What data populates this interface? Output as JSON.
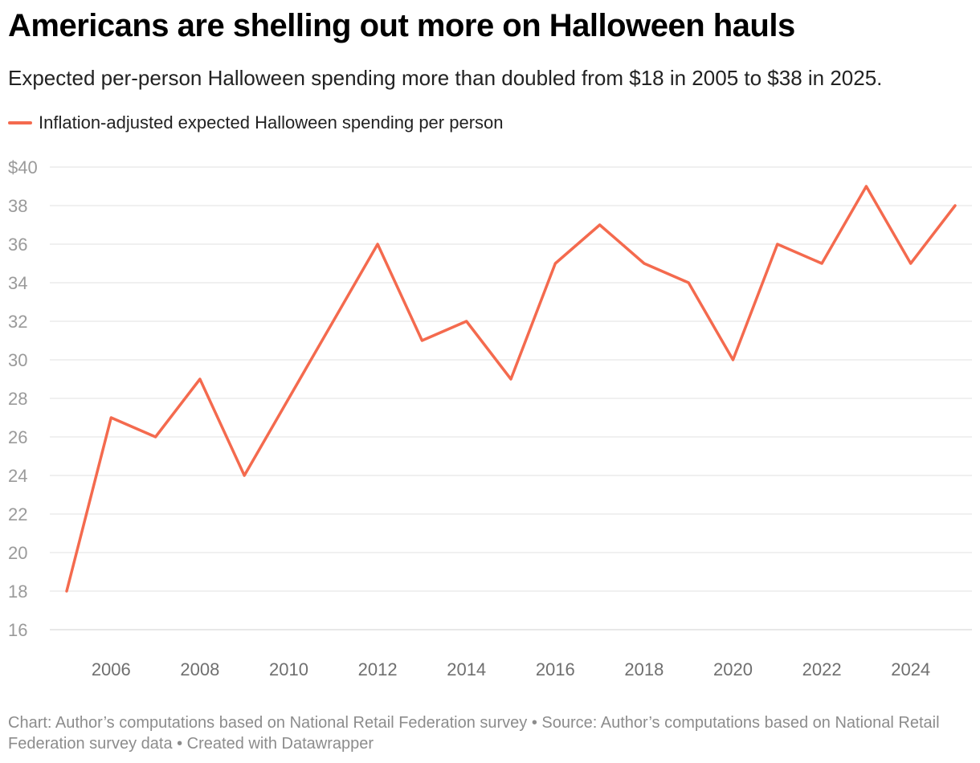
{
  "header": {
    "title": "Americans are shelling out more on Halloween hauls",
    "subtitle": "Expected per-person Halloween spending more than doubled from $18 in 2005 to $38 in 2025."
  },
  "legend": {
    "label": "Inflation-adjusted expected Halloween spending per person",
    "color": "#f46a4e"
  },
  "chart_data": {
    "type": "line",
    "title": "Americans are shelling out more on Halloween hauls",
    "xlabel": "",
    "ylabel": "",
    "x": [
      2005,
      2006,
      2007,
      2008,
      2009,
      2010,
      2011,
      2012,
      2013,
      2014,
      2015,
      2016,
      2017,
      2018,
      2019,
      2020,
      2021,
      2022,
      2023,
      2024,
      2025
    ],
    "series": [
      {
        "name": "Inflation-adjusted expected Halloween spending per person",
        "color": "#f46a4e",
        "values": [
          18,
          27,
          26,
          29,
          24,
          28,
          32,
          36,
          31,
          32,
          29,
          35,
          37,
          35,
          34,
          30,
          36,
          35,
          39,
          35,
          38
        ]
      }
    ],
    "ylim": [
      16,
      40
    ],
    "xlim": [
      2005,
      2025
    ],
    "yticks": [
      16,
      18,
      20,
      22,
      24,
      26,
      28,
      30,
      32,
      34,
      36,
      38,
      40
    ],
    "ytick_labels": [
      "16",
      "18",
      "20",
      "22",
      "24",
      "26",
      "28",
      "30",
      "32",
      "34",
      "36",
      "38",
      "$40"
    ],
    "xticks": [
      2006,
      2008,
      2010,
      2012,
      2014,
      2016,
      2018,
      2020,
      2022,
      2024
    ],
    "xtick_labels": [
      "2006",
      "2008",
      "2010",
      "2012",
      "2014",
      "2016",
      "2018",
      "2020",
      "2022",
      "2024"
    ],
    "grid": true
  },
  "footer": {
    "text": "Chart: Author’s computations based on National Retail Federation survey • Source: Author’s computations based on National Retail Federation survey data • Created with Datawrapper"
  }
}
